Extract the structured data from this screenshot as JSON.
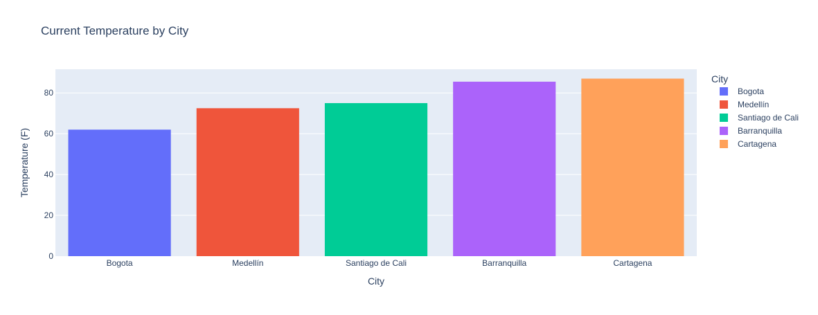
{
  "chart_data": {
    "type": "bar",
    "title": "Current Temperature by City",
    "xlabel": "City",
    "ylabel": "Temperature (F)",
    "categories": [
      "Bogota",
      "Medellín",
      "Santiago de Cali",
      "Barranquilla",
      "Cartagena"
    ],
    "values": [
      62,
      72.5,
      75,
      85.5,
      87
    ],
    "colors": [
      "#636efa",
      "#ef553b",
      "#00cc96",
      "#ab63fa",
      "#ffa15a"
    ],
    "ylim": [
      0,
      91.6
    ],
    "yticks": [
      0,
      20,
      40,
      60,
      80
    ],
    "grid": true,
    "plot_background": "#e5ecf6",
    "legend": {
      "title": "City",
      "placement": "right",
      "entries": [
        "Bogota",
        "Medellín",
        "Santiago de Cali",
        "Barranquilla",
        "Cartagena"
      ]
    }
  }
}
